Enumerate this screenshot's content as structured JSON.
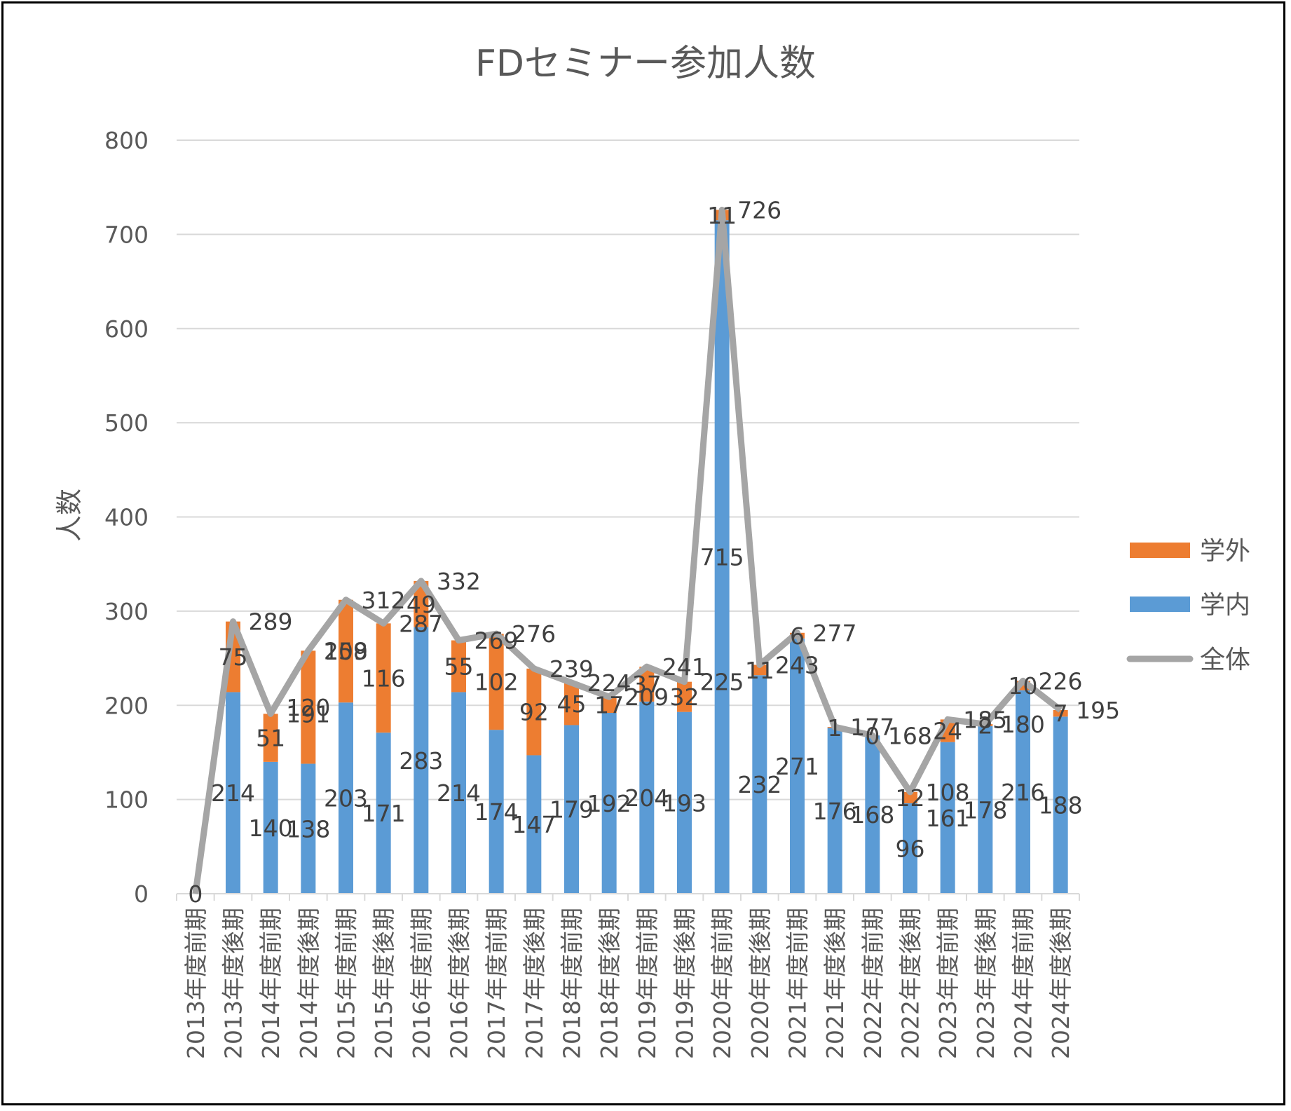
{
  "chart_data": {
    "type": "bar",
    "title": "FDセミナー参加人数",
    "ylabel": "人数",
    "xlabel": "",
    "ylim": [
      0,
      800
    ],
    "yticks": [
      0,
      100,
      200,
      300,
      400,
      500,
      600,
      700,
      800
    ],
    "grid": true,
    "legend_position": "right",
    "categories": [
      "2013年度前期",
      "2013年度後期",
      "2014年度前期",
      "2014年度後期",
      "2015年度前期",
      "2015年度後期",
      "2016年度前期",
      "2016年度後期",
      "2017年度前期",
      "2017年度後期",
      "2018年度前期",
      "2018年度後期",
      "2019年度前期",
      "2019年度後期",
      "2020年度前期",
      "2020年度後期",
      "2021年度前期",
      "2021年度後期",
      "2022年度前期",
      "2022年度後期",
      "2023年度前期",
      "2023年度後期",
      "2024年度前期",
      "2024年度後期"
    ],
    "series": [
      {
        "name": "学内",
        "kind": "stacked-bar",
        "color": "#5B9BD5",
        "values": [
          0,
          214,
          140,
          138,
          203,
          171,
          283,
          214,
          174,
          147,
          179,
          192,
          204,
          193,
          715,
          232,
          271,
          176,
          168,
          96,
          161,
          178,
          216,
          188
        ]
      },
      {
        "name": "学外",
        "kind": "stacked-bar",
        "color": "#ED7D31",
        "values": [
          0,
          75,
          51,
          120,
          109,
          116,
          49,
          55,
          102,
          92,
          45,
          17,
          37,
          32,
          11,
          11,
          6,
          1,
          0,
          12,
          24,
          2,
          10,
          7
        ]
      },
      {
        "name": "全体",
        "kind": "line",
        "color": "#A5A5A5",
        "values": [
          0,
          289,
          191,
          258,
          312,
          287,
          332,
          269,
          276,
          239,
          224,
          209,
          241,
          225,
          726,
          243,
          277,
          177,
          168,
          108,
          185,
          180,
          226,
          195
        ]
      }
    ]
  }
}
